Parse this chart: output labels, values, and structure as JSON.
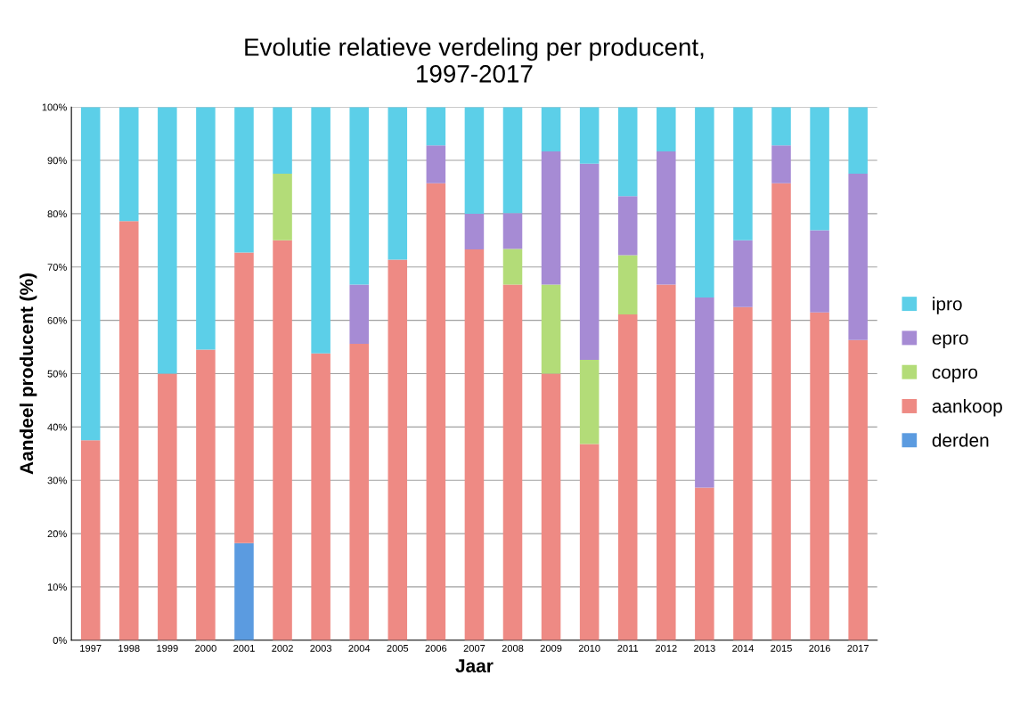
{
  "chart_data": {
    "type": "bar",
    "stacked": true,
    "title": "Evolutie relatieve verdeling per producent,\n1997-2017",
    "xlabel": "Jaar",
    "ylabel": "Aandeel producent (%)",
    "categories": [
      "1997",
      "1998",
      "1999",
      "2000",
      "2001",
      "2002",
      "2003",
      "2004",
      "2005",
      "2006",
      "2007",
      "2008",
      "2009",
      "2010",
      "2011",
      "2012",
      "2013",
      "2014",
      "2015",
      "2016",
      "2017"
    ],
    "series": [
      {
        "name": "derden",
        "color": "#5b9be0",
        "values": [
          0,
          0,
          0,
          0,
          18.2,
          0,
          0,
          0,
          0,
          0,
          0,
          0,
          0,
          0,
          0,
          0,
          0,
          0,
          0,
          0,
          0
        ]
      },
      {
        "name": "aankoop",
        "color": "#ee8a84",
        "values": [
          37.5,
          78.6,
          50,
          54.5,
          54.5,
          75,
          53.8,
          55.6,
          71.4,
          85.7,
          73.3,
          66.7,
          50,
          36.8,
          61.1,
          66.7,
          28.6,
          62.5,
          85.7,
          61.5,
          56.3
        ]
      },
      {
        "name": "copro",
        "color": "#b3dc78",
        "values": [
          0,
          0,
          0,
          0,
          0,
          12.5,
          0,
          0,
          0,
          0,
          0,
          6.7,
          16.7,
          15.8,
          11.1,
          0,
          0,
          0,
          0,
          0,
          0
        ]
      },
      {
        "name": "epro",
        "color": "#a68bd4",
        "values": [
          0,
          0,
          0,
          0,
          0,
          0,
          0,
          11.1,
          0,
          7.1,
          6.7,
          6.7,
          25,
          36.8,
          11.1,
          25,
          35.7,
          12.5,
          7.1,
          15.4,
          31.2
        ]
      },
      {
        "name": "ipro",
        "color": "#5ccfe8",
        "values": [
          62.5,
          21.4,
          50,
          45.5,
          27.3,
          12.5,
          46.2,
          33.3,
          28.6,
          7.2,
          20,
          19.9,
          8.3,
          10.6,
          16.7,
          8.3,
          35.7,
          25,
          7.2,
          23.1,
          12.5
        ]
      }
    ],
    "ylim": [
      0,
      100
    ],
    "yticks": [
      {
        "value": 0,
        "label": "0%"
      },
      {
        "value": 10,
        "label": "10%"
      },
      {
        "value": 20,
        "label": "20%"
      },
      {
        "value": 30,
        "label": "30%"
      },
      {
        "value": 40,
        "label": "40%"
      },
      {
        "value": 50,
        "label": "50%"
      },
      {
        "value": 60,
        "label": "60%"
      },
      {
        "value": 70,
        "label": "70%"
      },
      {
        "value": 80,
        "label": "80%"
      },
      {
        "value": 90,
        "label": "90%"
      },
      {
        "value": 100,
        "label": "100%"
      }
    ],
    "grid": "y",
    "legend": "right"
  }
}
